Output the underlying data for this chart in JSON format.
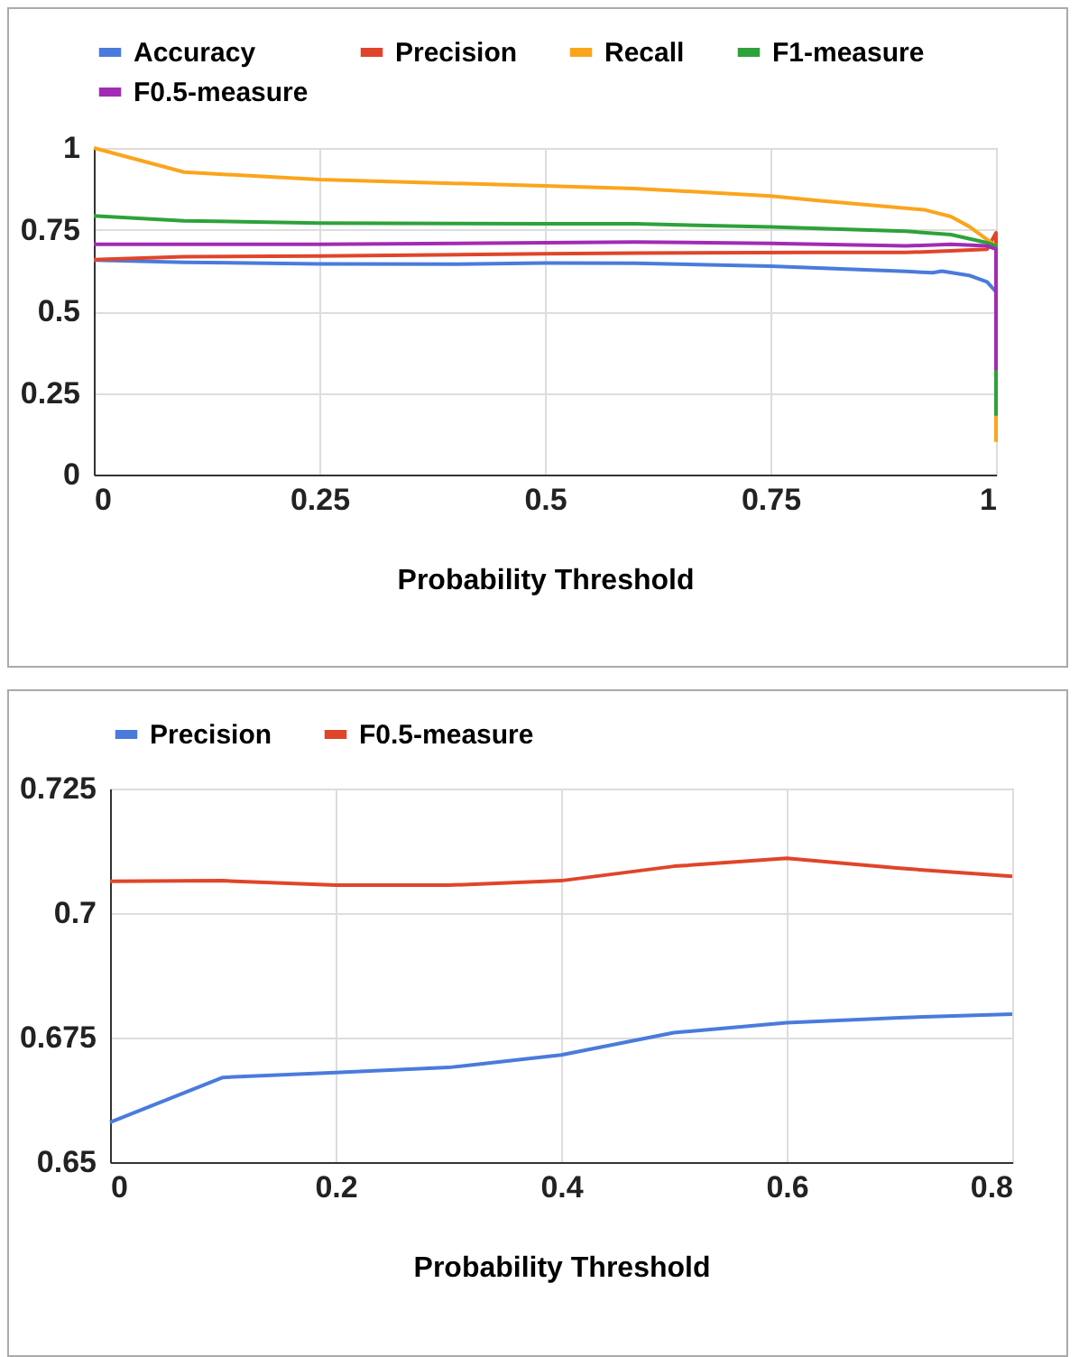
{
  "chart_data": [
    {
      "type": "line",
      "xlabel": "Probability Threshold",
      "xlim": [
        0,
        1
      ],
      "xticks": [
        0,
        0.25,
        0.5,
        0.75,
        1
      ],
      "ylim": [
        0,
        1
      ],
      "yticks": [
        0,
        0.25,
        0.5,
        0.75,
        1
      ],
      "grid": true,
      "legend": "top",
      "series": [
        {
          "name": "Accuracy",
          "color": "#4a7bdc",
          "x": [
            0,
            0.1,
            0.25,
            0.4,
            0.5,
            0.6,
            0.75,
            0.9,
            0.93,
            0.94,
            0.97,
            0.99,
            1
          ],
          "values": [
            0.657,
            0.65,
            0.645,
            0.644,
            0.648,
            0.647,
            0.638,
            0.622,
            0.618,
            0.623,
            0.61,
            0.59,
            0.56
          ]
        },
        {
          "name": "Precision",
          "color": "#e0452a",
          "x": [
            0,
            0.1,
            0.25,
            0.5,
            0.6,
            0.8,
            0.9,
            0.95,
            0.99,
            1,
            1
          ],
          "values": [
            0.658,
            0.667,
            0.669,
            0.676,
            0.678,
            0.68,
            0.68,
            0.685,
            0.69,
            0.74,
            0.69
          ]
        },
        {
          "name": "Recall",
          "color": "#fba51c",
          "x": [
            0,
            0.1,
            0.25,
            0.5,
            0.6,
            0.75,
            0.8,
            0.92,
            0.95,
            0.97,
            0.99,
            1,
            1
          ],
          "values": [
            1,
            0.926,
            0.903,
            0.884,
            0.876,
            0.853,
            0.84,
            0.811,
            0.79,
            0.76,
            0.72,
            0.7,
            0.1
          ]
        },
        {
          "name": "F1-measure",
          "color": "#2da23a",
          "x": [
            0,
            0.1,
            0.25,
            0.5,
            0.6,
            0.75,
            0.9,
            0.95,
            0.99,
            1,
            1
          ],
          "values": [
            0.792,
            0.777,
            0.77,
            0.768,
            0.768,
            0.758,
            0.745,
            0.735,
            0.71,
            0.7,
            0.18
          ]
        },
        {
          "name": "F0.5-measure",
          "color": "#a22bb4",
          "x": [
            0,
            0.25,
            0.5,
            0.6,
            0.75,
            0.9,
            0.95,
            0.99,
            1,
            1
          ],
          "values": [
            0.705,
            0.705,
            0.71,
            0.712,
            0.708,
            0.7,
            0.705,
            0.7,
            0.69,
            0.32
          ]
        }
      ]
    },
    {
      "type": "line",
      "xlabel": "Probability Threshold",
      "x": [
        0,
        0.1,
        0.2,
        0.3,
        0.4,
        0.5,
        0.6,
        0.7,
        0.8
      ],
      "xlim": [
        0,
        0.8
      ],
      "xticks": [
        0,
        0.2,
        0.4,
        0.6,
        0.8
      ],
      "ylim": [
        0.65,
        0.725
      ],
      "yticks": [
        0.65,
        0.675,
        0.7,
        0.725
      ],
      "grid": true,
      "legend": "top",
      "series": [
        {
          "name": "Precision",
          "color": "#4a7bdc",
          "values": [
            0.658,
            0.667,
            0.668,
            0.669,
            0.6715,
            0.676,
            0.678,
            0.679,
            0.6797
          ]
        },
        {
          "name": "F0.5-measure",
          "color": "#e0452a",
          "values": [
            0.7064,
            0.7065,
            0.7056,
            0.7056,
            0.7065,
            0.7094,
            0.711,
            0.709,
            0.7074
          ]
        }
      ]
    }
  ]
}
